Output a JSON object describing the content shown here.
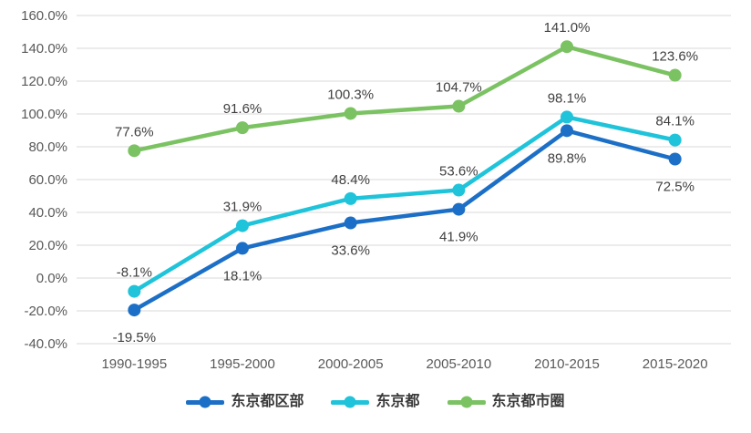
{
  "chart_data": {
    "type": "line",
    "title": "",
    "xlabel": "",
    "ylabel": "",
    "categories": [
      "1990-1995",
      "1995-2000",
      "2000-2005",
      "2005-2010",
      "2010-2015",
      "2015-2020"
    ],
    "series": [
      {
        "name": "东京都区部",
        "color": "#1C6FC6",
        "values": [
          -19.5,
          18.1,
          33.6,
          41.9,
          89.8,
          72.5
        ],
        "labels": [
          "-19.5%",
          "18.1%",
          "33.6%",
          "41.9%",
          "89.8%",
          "72.5%"
        ],
        "label_position": "below"
      },
      {
        "name": "东京都",
        "color": "#1FC3DA",
        "values": [
          -8.1,
          31.9,
          48.4,
          53.6,
          98.1,
          84.1
        ],
        "labels": [
          "-8.1%",
          "31.9%",
          "48.4%",
          "53.6%",
          "98.1%",
          "84.1%"
        ],
        "label_position": "above"
      },
      {
        "name": "东京都市圈",
        "color": "#7BC262",
        "values": [
          77.6,
          91.6,
          100.3,
          104.7,
          141.0,
          123.6
        ],
        "labels": [
          "77.6%",
          "91.6%",
          "100.3%",
          "104.7%",
          "141.0%",
          "123.6%"
        ],
        "label_position": "above"
      }
    ],
    "ylim": [
      -40,
      160
    ],
    "ytick_step": 20,
    "ytick_labels": [
      "160.0%",
      "140.0%",
      "120.0%",
      "100.0%",
      "80.0%",
      "60.0%",
      "40.0%",
      "20.0%",
      "0.0%",
      "-20.0%",
      "-40.0%"
    ],
    "grid": true,
    "legend_position": "bottom",
    "styles": {
      "background": "#FFFFFF",
      "grid_color": "#D9D9D9",
      "tick_label_color": "#595959",
      "data_label_color": "#404040",
      "legend_text_color": "#3A3A3A"
    }
  }
}
